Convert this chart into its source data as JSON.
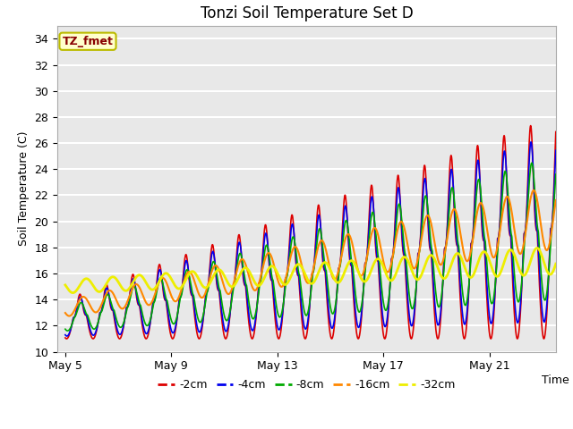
{
  "title": "Tonzi Soil Temperature Set D",
  "xlabel": "Time",
  "ylabel": "Soil Temperature (C)",
  "ylim": [
    10,
    35
  ],
  "yticks": [
    10,
    12,
    14,
    16,
    18,
    20,
    22,
    24,
    26,
    28,
    30,
    32,
    34
  ],
  "xtick_labels": [
    "May 5",
    "May 9",
    "May 13",
    "May 17",
    "May 21"
  ],
  "xtick_positions": [
    0,
    4,
    8,
    12,
    16
  ],
  "xlim": [
    -0.3,
    18.5
  ],
  "annotation_text": "TZ_fmet",
  "annotation_bg": "#ffffcc",
  "annotation_border": "#bbbb00",
  "plot_bg": "#e8e8e8",
  "fig_bg": "#ffffff",
  "lines": [
    {
      "label": "-2cm",
      "color": "#dd0000",
      "lw": 1.2
    },
    {
      "label": "-4cm",
      "color": "#0000ee",
      "lw": 1.2
    },
    {
      "label": "-8cm",
      "color": "#00aa00",
      "lw": 1.2
    },
    {
      "label": "-16cm",
      "color": "#ff8800",
      "lw": 1.5
    },
    {
      "label": "-32cm",
      "color": "#eeee00",
      "lw": 2.0
    }
  ],
  "title_fontsize": 12,
  "label_fontsize": 9,
  "tick_fontsize": 9,
  "annotation_fontsize": 9
}
